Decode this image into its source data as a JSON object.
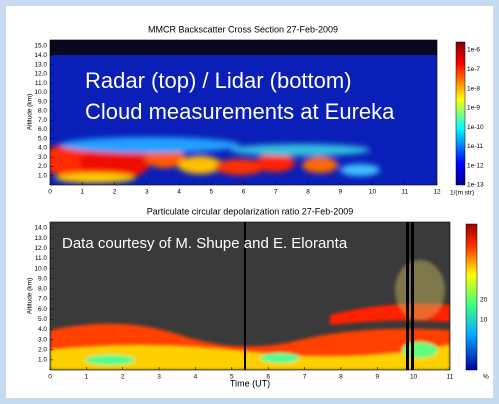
{
  "slide": {
    "top_plot": {
      "title": "MMCR Backscatter Cross Section  27-Feb-2009",
      "overlay": [
        "Radar (top) / Lidar (bottom)",
        "Cloud measurements at Eureka"
      ],
      "y_axis_label": "Altitude (km)",
      "y_ticks": [
        "15.0",
        "14.0",
        "13.0",
        "12.0",
        "11.0",
        "10.0",
        "9.0",
        "8.0",
        "7.0",
        "6.0",
        "5.0",
        "4.0",
        "3.0",
        "2.0",
        "1.0"
      ],
      "x_ticks": [
        "0",
        "1",
        "2",
        "3",
        "4",
        "5",
        "6",
        "7",
        "8",
        "9",
        "10",
        "11",
        "12"
      ],
      "colorbar_ticks": [
        "1e-6",
        "1e-7",
        "1e-8",
        "1e-9",
        "1e-10",
        "1e-11",
        "1e-12",
        "1e-13"
      ],
      "colorbar_unit": "1/(m str)"
    },
    "bottom_plot": {
      "title": "Particulate circular depolarization ratio  27-Feb-2009",
      "overlay": "Data courtesy of M. Shupe and E. Eloranta",
      "y_axis_label": "Altitude (km)",
      "y_ticks": [
        "14.0",
        "13.0",
        "12.0",
        "11.0",
        "10.0",
        "9.0",
        "8.0",
        "7.0",
        "6.0",
        "5.0",
        "4.0",
        "3.0",
        "2.0",
        "1.0"
      ],
      "x_ticks": [
        "0",
        "1",
        "2",
        "3",
        "4",
        "5",
        "6",
        "7",
        "8",
        "9",
        "10",
        "11"
      ],
      "x_axis_label": "Time (UT)",
      "colorbar_ticks": [
        "20",
        "10"
      ],
      "colorbar_unit": "%"
    }
  }
}
